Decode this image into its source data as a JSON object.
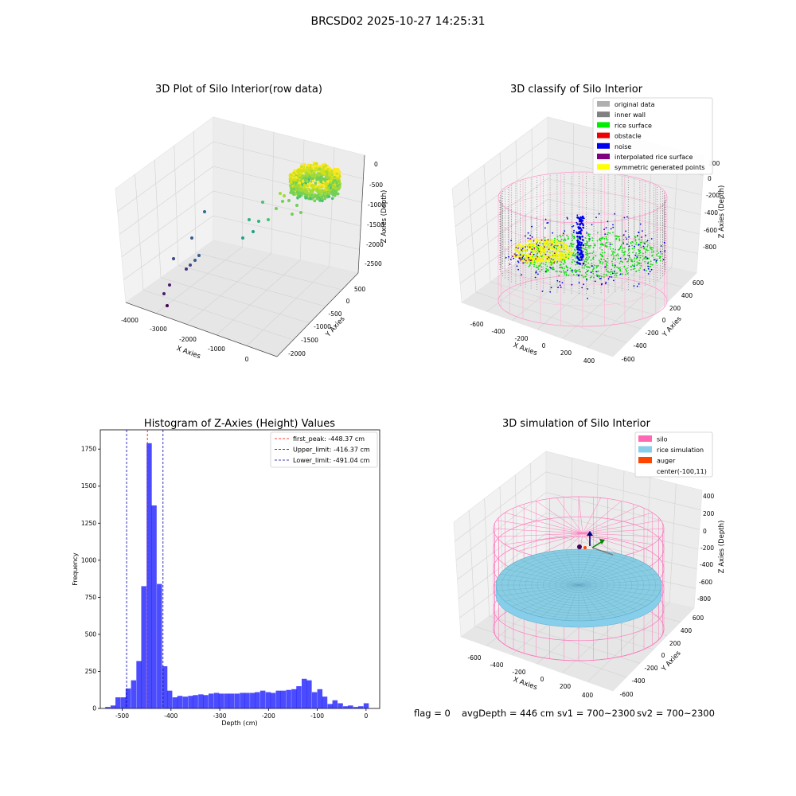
{
  "suptitle": "BRCSD02 2025-10-27 14:25:31",
  "footer": {
    "flag": "flag = 0",
    "avg_depth": "avgDepth = 446 cm",
    "sv1": "sv1 = 700~2300",
    "sv2": "sv2 = 700~2300"
  },
  "chart_data": [
    {
      "type": "scatter",
      "projection": "3d",
      "title": "3D Plot of Silo Interior(row data)",
      "xlabel": "X Axies",
      "ylabel": "Y Axies",
      "zlabel": "Z Axies (Depth)",
      "xticks": [
        "-4000",
        "-3000",
        "-2000",
        "-1000",
        "0"
      ],
      "yticks": [
        "500",
        "0",
        "-500",
        "-1000",
        "-1500",
        "-2000"
      ],
      "zticks": [
        "0",
        "-500",
        "-1000",
        "-1500",
        "-2000",
        "-2500"
      ],
      "colormap": "viridis",
      "grid": true,
      "description_points": "dense ring of points near (-300, 300, -300); sparse trail descending towards (-3800, 0, -2600)"
    },
    {
      "type": "scatter",
      "projection": "3d",
      "title": "3D classify of Silo Interior",
      "xlabel": "X Axies",
      "ylabel": "Y Axies",
      "zlabel": "Z Axies (Depth)",
      "xticks": [
        "-600",
        "-400",
        "-200",
        "0",
        "200",
        "400"
      ],
      "yticks": [
        "600",
        "400",
        "200",
        "0",
        "-200",
        "-400",
        "-600"
      ],
      "zticks": [
        "200",
        "0",
        "-200",
        "-400",
        "-600",
        "-800"
      ],
      "legend_position": "top-right",
      "legend": [
        {
          "label": "original data",
          "color": "#b0b0b0"
        },
        {
          "label": "inner wall",
          "color": "#808080"
        },
        {
          "label": "rice surface",
          "color": "#00ee00"
        },
        {
          "label": "obstacle",
          "color": "#ee0000"
        },
        {
          "label": "noise",
          "color": "#0000ee"
        },
        {
          "label": "interpolated rice surface",
          "color": "#800080"
        },
        {
          "label": "symmetric generated points",
          "color": "#ffff00"
        }
      ],
      "grid": true
    },
    {
      "type": "bar",
      "title": "Histogram of Z-Axies (Height) Values",
      "xlabel": "Depth (cm)",
      "ylabel": "Frequency",
      "xticks": [
        -500,
        -400,
        -300,
        -200,
        -100,
        0
      ],
      "yticks": [
        0,
        250,
        500,
        750,
        1000,
        1250,
        1500,
        1750
      ],
      "xlim": [
        -545,
        28
      ],
      "ylim": [
        0,
        1880
      ],
      "bar_color": "#0000ff",
      "bin_width": 10.6,
      "bins": [
        {
          "left": -535,
          "count": 10
        },
        {
          "left": -524,
          "count": 20
        },
        {
          "left": -514,
          "count": 75
        },
        {
          "left": -503,
          "count": 75
        },
        {
          "left": -493,
          "count": 135
        },
        {
          "left": -482,
          "count": 190
        },
        {
          "left": -471,
          "count": 320
        },
        {
          "left": -461,
          "count": 825
        },
        {
          "left": -450,
          "count": 1790
        },
        {
          "left": -440,
          "count": 1370
        },
        {
          "left": -429,
          "count": 840
        },
        {
          "left": -418,
          "count": 285
        },
        {
          "left": -408,
          "count": 120
        },
        {
          "left": -397,
          "count": 75
        },
        {
          "left": -387,
          "count": 85
        },
        {
          "left": -376,
          "count": 80
        },
        {
          "left": -365,
          "count": 85
        },
        {
          "left": -355,
          "count": 90
        },
        {
          "left": -344,
          "count": 95
        },
        {
          "left": -334,
          "count": 90
        },
        {
          "left": -323,
          "count": 100
        },
        {
          "left": -312,
          "count": 105
        },
        {
          "left": -302,
          "count": 100
        },
        {
          "left": -291,
          "count": 100
        },
        {
          "left": -281,
          "count": 100
        },
        {
          "left": -270,
          "count": 100
        },
        {
          "left": -259,
          "count": 105
        },
        {
          "left": -249,
          "count": 105
        },
        {
          "left": -238,
          "count": 105
        },
        {
          "left": -228,
          "count": 110
        },
        {
          "left": -217,
          "count": 120
        },
        {
          "left": -206,
          "count": 110
        },
        {
          "left": -196,
          "count": 105
        },
        {
          "left": -185,
          "count": 120
        },
        {
          "left": -175,
          "count": 120
        },
        {
          "left": -164,
          "count": 125
        },
        {
          "left": -153,
          "count": 130
        },
        {
          "left": -143,
          "count": 150
        },
        {
          "left": -132,
          "count": 200
        },
        {
          "left": -122,
          "count": 190
        },
        {
          "left": -111,
          "count": 110
        },
        {
          "left": -100,
          "count": 130
        },
        {
          "left": -90,
          "count": 80
        },
        {
          "left": -79,
          "count": 30
        },
        {
          "left": -69,
          "count": 55
        },
        {
          "left": -58,
          "count": 35
        },
        {
          "left": -47,
          "count": 15
        },
        {
          "left": -37,
          "count": 20
        },
        {
          "left": -26,
          "count": 10
        },
        {
          "left": -16,
          "count": 15
        },
        {
          "left": -5,
          "count": 35
        }
      ],
      "vlines": [
        {
          "x": -448.37,
          "color": "#ff0000",
          "style": "dashed",
          "label": "first_peak: -448.37 cm"
        },
        {
          "x": -416.37,
          "color": "#0000aa",
          "style": "dashed",
          "label": "Upper_limit: -416.37 cm"
        },
        {
          "x": -491.04,
          "color": "#0000aa",
          "style": "dashed",
          "label": "Lower_limit: -491.04 cm"
        }
      ],
      "legend_position": "top-right"
    },
    {
      "type": "surface",
      "projection": "3d",
      "title": "3D simulation of Silo Interior",
      "xlabel": "X Axies",
      "ylabel": "Y Axies",
      "zlabel": "Z Axies (Depth)",
      "xticks": [
        "-600",
        "-400",
        "-200",
        "0",
        "200",
        "400"
      ],
      "yticks": [
        "600",
        "400",
        "200",
        "0",
        "-200",
        "-400",
        "-600"
      ],
      "zticks": [
        "400",
        "200",
        "0",
        "-200",
        "-400",
        "-600",
        "-800"
      ],
      "legend_position": "top-right",
      "legend": [
        {
          "label": "silo",
          "color": "#ff69b4"
        },
        {
          "label": "rice simulation",
          "color": "#87ceeb"
        },
        {
          "label": "auger",
          "color": "#ff4500"
        },
        {
          "label": "center(-100,11)",
          "color": ""
        }
      ],
      "grid": true
    }
  ]
}
